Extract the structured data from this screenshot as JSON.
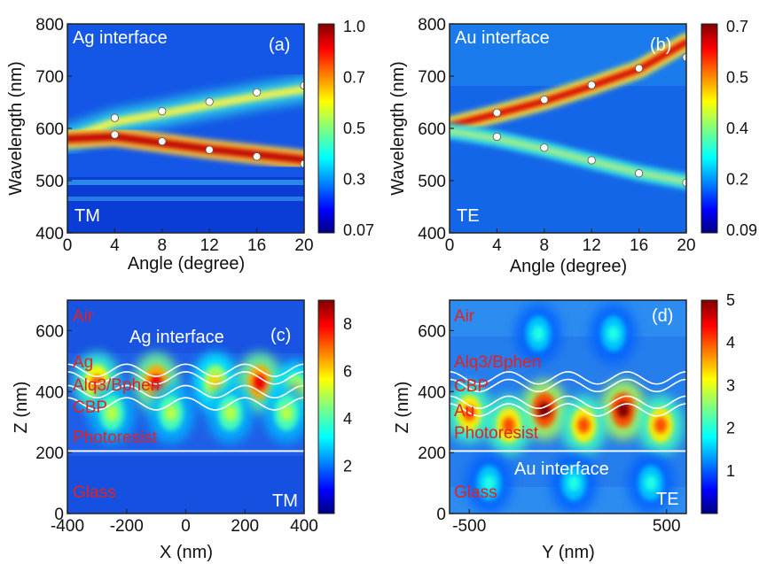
{
  "colors": {
    "layer_label": "#e8201c",
    "curve": "#ffffff",
    "marker_fill": "#ffffff",
    "colormap": "jet"
  },
  "chart_data": [
    {
      "panel": "(a)",
      "type": "heatmap",
      "inset_text": "Ag interface",
      "polarization": "TM",
      "xlabel": "Angle (degree)",
      "ylabel": "Wavelength (nm)",
      "xlim": [
        0,
        20
      ],
      "ylim": [
        400,
        800
      ],
      "x_ticks": [
        "0",
        "4",
        "8",
        "12",
        "16",
        "20"
      ],
      "y_ticks": [
        "400",
        "500",
        "600",
        "700",
        "800"
      ],
      "colorbar_ticks": [
        "1.0",
        "0.7",
        "0.5",
        "0.3",
        "0.07"
      ],
      "colorbar_range": [
        0.07,
        1.0
      ],
      "markers": [
        {
          "x": 4,
          "y": 620
        },
        {
          "x": 8,
          "y": 633
        },
        {
          "x": 12,
          "y": 651
        },
        {
          "x": 16,
          "y": 669
        },
        {
          "x": 20,
          "y": 682
        },
        {
          "x": 4,
          "y": 588
        },
        {
          "x": 8,
          "y": 575
        },
        {
          "x": 12,
          "y": 559
        },
        {
          "x": 16,
          "y": 546
        },
        {
          "x": 20,
          "y": 532
        }
      ],
      "bands": [
        {
          "role": "upper",
          "points": [
            [
              0,
              580
            ],
            [
              4,
              612
            ],
            [
              8,
              628
            ],
            [
              12,
              645
            ],
            [
              16,
              661
            ],
            [
              20,
              675
            ]
          ]
        },
        {
          "role": "lower",
          "points": [
            [
              0,
              580
            ],
            [
              4,
              584
            ],
            [
              8,
              572
            ],
            [
              12,
              560
            ],
            [
              16,
              550
            ],
            [
              20,
              540
            ]
          ]
        }
      ]
    },
    {
      "panel": "(b)",
      "type": "heatmap",
      "inset_text": "Au interface",
      "polarization": "TE",
      "xlabel": "Angle (degree)",
      "ylabel": "Wavelength (nm)",
      "xlim": [
        0,
        20
      ],
      "ylim": [
        400,
        800
      ],
      "x_ticks": [
        "0",
        "4",
        "8",
        "12",
        "16",
        "20"
      ],
      "y_ticks": [
        "400",
        "500",
        "600",
        "700",
        "800"
      ],
      "colorbar_ticks": [
        "0.7",
        "0.5",
        "0.4",
        "0.2",
        "0.09"
      ],
      "colorbar_range": [
        0.09,
        0.7
      ],
      "markers": [
        {
          "x": 4,
          "y": 630
        },
        {
          "x": 8,
          "y": 655
        },
        {
          "x": 12,
          "y": 683
        },
        {
          "x": 16,
          "y": 715
        },
        {
          "x": 20,
          "y": 736
        },
        {
          "x": 4,
          "y": 584
        },
        {
          "x": 8,
          "y": 563
        },
        {
          "x": 12,
          "y": 539
        },
        {
          "x": 16,
          "y": 514
        },
        {
          "x": 20,
          "y": 496
        }
      ],
      "bands": [
        {
          "role": "upper",
          "points": [
            [
              0,
              605
            ],
            [
              4,
              628
            ],
            [
              8,
              652
            ],
            [
              12,
              681
            ],
            [
              16,
              713
            ],
            [
              20,
              765
            ]
          ]
        },
        {
          "role": "lower",
          "points": [
            [
              0,
              595
            ],
            [
              4,
              580
            ],
            [
              8,
              560
            ],
            [
              12,
              537
            ],
            [
              16,
              515
            ],
            [
              20,
              498
            ]
          ]
        }
      ]
    },
    {
      "panel": "(c)",
      "type": "heatmap",
      "inset_text": "Ag interface",
      "polarization": "TM",
      "xlabel": "X (nm)",
      "ylabel": "Z (nm)",
      "xlim": [
        -400,
        400
      ],
      "ylim": [
        0,
        700
      ],
      "x_ticks": [
        "-400",
        "-200",
        "0",
        "200",
        "400"
      ],
      "y_ticks": [
        "0",
        "200",
        "400",
        "600"
      ],
      "colorbar_ticks": [
        "8",
        "6",
        "4",
        "2"
      ],
      "colorbar_range": [
        0,
        9
      ],
      "layers": [
        "Air",
        "Ag",
        "Alq3/Bphen",
        "CBP",
        "Photoresist",
        "Glass"
      ],
      "interface_lines_z": [
        470,
        445,
        400,
        360
      ],
      "substrate_line_z": 205,
      "hotspots": [
        {
          "x": -300,
          "z": 430,
          "value": 7
        },
        {
          "x": -100,
          "z": 430,
          "value": 8
        },
        {
          "x": 100,
          "z": 430,
          "value": 6
        },
        {
          "x": 250,
          "z": 430,
          "value": 8
        },
        {
          "x": 370,
          "z": 400,
          "value": 6
        },
        {
          "x": -250,
          "z": 330,
          "value": 5
        },
        {
          "x": -50,
          "z": 330,
          "value": 5
        },
        {
          "x": 150,
          "z": 330,
          "value": 5
        },
        {
          "x": 340,
          "z": 330,
          "value": 5
        }
      ]
    },
    {
      "panel": "(d)",
      "type": "heatmap",
      "inset_text": "Au interface",
      "polarization": "TE",
      "xlabel": "Y (nm)",
      "ylabel": "Z (nm)",
      "xlim": [
        -600,
        600
      ],
      "ylim": [
        0,
        700
      ],
      "x_ticks": [
        "-500",
        "500"
      ],
      "y_ticks": [
        "0",
        "200",
        "400",
        "600"
      ],
      "colorbar_ticks": [
        "5",
        "4",
        "3",
        "2",
        "1"
      ],
      "colorbar_range": [
        0,
        5
      ],
      "layers": [
        "Air",
        "Alq3/Bphen",
        "CBP",
        "Au",
        "Photoresist",
        "Glass"
      ],
      "interface_lines_z": [
        445,
        420,
        365,
        340
      ],
      "substrate_line_z": 205,
      "hotspots": [
        {
          "x": -500,
          "z": 330,
          "value": 4
        },
        {
          "x": -120,
          "z": 340,
          "value": 5
        },
        {
          "x": 280,
          "z": 340,
          "value": 5
        },
        {
          "x": -300,
          "z": 290,
          "value": 4
        },
        {
          "x": 80,
          "z": 290,
          "value": 4
        },
        {
          "x": 470,
          "z": 290,
          "value": 4
        },
        {
          "x": -150,
          "z": 590,
          "value": 2
        },
        {
          "x": 230,
          "z": 590,
          "value": 2
        },
        {
          "x": -400,
          "z": 100,
          "value": 2
        },
        {
          "x": 30,
          "z": 100,
          "value": 2
        },
        {
          "x": 420,
          "z": 100,
          "value": 2
        }
      ]
    }
  ]
}
